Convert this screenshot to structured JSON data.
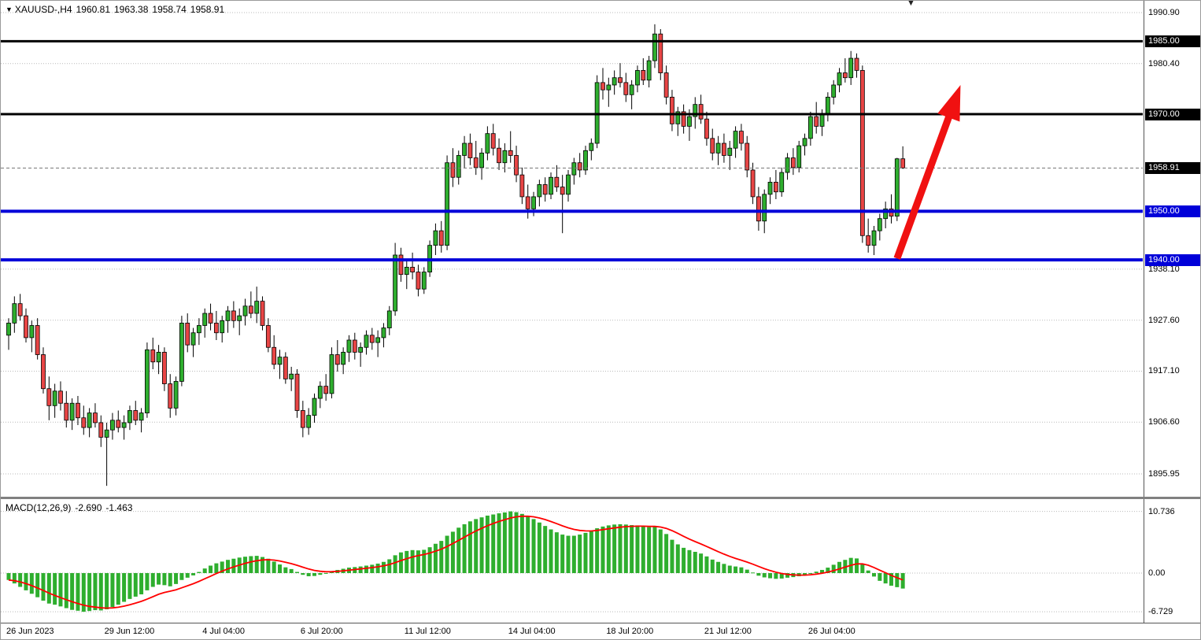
{
  "header": {
    "symbol_timeframe": "XAUUSD-,H4",
    "open": "1960.81",
    "high": "1963.38",
    "low": "1958.74",
    "close": "1958.91"
  },
  "chart_data": [
    {
      "type": "candlestick",
      "symbol": "XAUUSD",
      "timeframe": "H4",
      "price_axis": {
        "grid_labels": [
          1990.9,
          1980.4,
          1938.1,
          1927.6,
          1917.1,
          1906.6,
          1895.95
        ],
        "level_lines": [
          {
            "price": 1985.0,
            "color": "#000000",
            "width": 3
          },
          {
            "price": 1970.0,
            "color": "#000000",
            "width": 3
          },
          {
            "price": 1950.0,
            "color": "#0000d9",
            "width": 4
          },
          {
            "price": 1940.0,
            "color": "#0000d9",
            "width": 4
          }
        ],
        "current_price": 1958.91
      },
      "time_labels": [
        {
          "label": "26 Jun 2023",
          "bar": 0
        },
        {
          "label": "29 Jun 12:00",
          "bar": 17
        },
        {
          "label": "4 Jul 04:00",
          "bar": 34
        },
        {
          "label": "6 Jul 20:00",
          "bar": 51
        },
        {
          "label": "11 Jul 12:00",
          "bar": 69
        },
        {
          "label": "14 Jul 04:00",
          "bar": 87
        },
        {
          "label": "18 Jul 20:00",
          "bar": 104
        },
        {
          "label": "21 Jul 12:00",
          "bar": 121
        },
        {
          "label": "26 Jul 04:00",
          "bar": 139
        }
      ],
      "annotation_arrow": {
        "from_bar": 154,
        "from_price": 1940.3,
        "to_bar": 165,
        "to_price": 1976.0
      },
      "ohlc": [
        [
          1924.5,
          1928.0,
          1921.5,
          1927.0
        ],
        [
          1927.0,
          1932.5,
          1925.0,
          1931.0
        ],
        [
          1931.0,
          1933.0,
          1927.5,
          1928.5
        ],
        [
          1928.5,
          1930.0,
          1923.0,
          1924.0
        ],
        [
          1924.0,
          1927.5,
          1921.0,
          1926.5
        ],
        [
          1926.5,
          1928.0,
          1919.5,
          1920.5
        ],
        [
          1920.5,
          1922.0,
          1912.5,
          1913.5
        ],
        [
          1913.5,
          1916.0,
          1907.0,
          1910.0
        ],
        [
          1910.0,
          1914.5,
          1907.5,
          1913.0
        ],
        [
          1913.0,
          1915.0,
          1909.0,
          1910.5
        ],
        [
          1910.5,
          1913.0,
          1905.5,
          1907.0
        ],
        [
          1907.0,
          1911.5,
          1905.0,
          1910.5
        ],
        [
          1910.5,
          1912.0,
          1906.0,
          1907.5
        ],
        [
          1907.5,
          1910.0,
          1904.0,
          1905.5
        ],
        [
          1905.5,
          1909.5,
          1903.5,
          1908.5
        ],
        [
          1908.5,
          1910.5,
          1905.5,
          1906.5
        ],
        [
          1906.5,
          1908.0,
          1901.5,
          1903.5
        ],
        [
          1903.5,
          1906.5,
          1893.5,
          1905.0
        ],
        [
          1905.0,
          1908.5,
          1903.0,
          1907.0
        ],
        [
          1907.0,
          1909.0,
          1904.5,
          1905.5
        ],
        [
          1905.5,
          1908.0,
          1903.0,
          1906.5
        ],
        [
          1906.5,
          1910.0,
          1905.0,
          1909.0
        ],
        [
          1909.0,
          1911.0,
          1906.0,
          1907.0
        ],
        [
          1907.0,
          1909.5,
          1904.5,
          1908.5
        ],
        [
          1908.5,
          1923.0,
          1907.5,
          1921.5
        ],
        [
          1921.5,
          1924.0,
          1917.5,
          1919.0
        ],
        [
          1919.0,
          1922.5,
          1916.5,
          1921.0
        ],
        [
          1921.0,
          1922.0,
          1913.0,
          1914.5
        ],
        [
          1914.5,
          1916.5,
          1907.5,
          1909.5
        ],
        [
          1909.5,
          1916.0,
          1908.0,
          1915.0
        ],
        [
          1915.0,
          1928.5,
          1914.0,
          1927.0
        ],
        [
          1927.0,
          1929.0,
          1921.0,
          1922.5
        ],
        [
          1922.5,
          1926.0,
          1920.0,
          1925.0
        ],
        [
          1925.0,
          1928.0,
          1922.5,
          1926.5
        ],
        [
          1926.5,
          1930.0,
          1924.0,
          1929.0
        ],
        [
          1929.0,
          1931.0,
          1925.5,
          1927.0
        ],
        [
          1927.0,
          1929.5,
          1923.5,
          1925.0
        ],
        [
          1925.0,
          1928.5,
          1923.0,
          1927.5
        ],
        [
          1927.5,
          1930.5,
          1925.0,
          1929.5
        ],
        [
          1929.5,
          1931.5,
          1926.0,
          1927.5
        ],
        [
          1927.5,
          1930.0,
          1924.5,
          1928.5
        ],
        [
          1928.5,
          1932.0,
          1926.5,
          1930.5
        ],
        [
          1930.5,
          1933.5,
          1928.0,
          1929.0
        ],
        [
          1929.0,
          1934.5,
          1927.0,
          1931.5
        ],
        [
          1931.5,
          1932.5,
          1925.5,
          1926.5
        ],
        [
          1926.5,
          1928.0,
          1921.0,
          1922.0
        ],
        [
          1922.0,
          1924.5,
          1917.5,
          1918.5
        ],
        [
          1918.5,
          1921.5,
          1915.5,
          1920.0
        ],
        [
          1920.0,
          1921.0,
          1914.5,
          1915.5
        ],
        [
          1915.5,
          1918.0,
          1913.0,
          1916.5
        ],
        [
          1916.5,
          1917.5,
          1907.5,
          1909.0
        ],
        [
          1909.0,
          1911.0,
          1903.5,
          1905.5
        ],
        [
          1905.5,
          1909.5,
          1904.0,
          1908.0
        ],
        [
          1908.0,
          1912.5,
          1906.5,
          1911.5
        ],
        [
          1911.5,
          1915.0,
          1909.5,
          1914.0
        ],
        [
          1914.0,
          1916.5,
          1911.0,
          1912.5
        ],
        [
          1912.5,
          1922.0,
          1911.5,
          1920.5
        ],
        [
          1920.5,
          1923.5,
          1917.0,
          1918.5
        ],
        [
          1918.5,
          1922.0,
          1916.5,
          1921.0
        ],
        [
          1921.0,
          1924.5,
          1919.0,
          1923.5
        ],
        [
          1923.5,
          1925.0,
          1919.5,
          1921.0
        ],
        [
          1921.0,
          1923.0,
          1918.0,
          1922.0
        ],
        [
          1922.0,
          1925.5,
          1920.5,
          1924.5
        ],
        [
          1924.5,
          1926.0,
          1921.5,
          1923.0
        ],
        [
          1923.0,
          1925.5,
          1920.0,
          1924.0
        ],
        [
          1924.0,
          1927.0,
          1922.0,
          1926.0
        ],
        [
          1926.0,
          1930.5,
          1924.5,
          1929.5
        ],
        [
          1929.5,
          1943.5,
          1928.5,
          1941.0
        ],
        [
          1941.0,
          1942.5,
          1935.5,
          1937.0
        ],
        [
          1937.0,
          1940.0,
          1934.0,
          1938.5
        ],
        [
          1938.5,
          1941.5,
          1936.0,
          1937.5
        ],
        [
          1937.5,
          1939.0,
          1932.5,
          1934.0
        ],
        [
          1934.0,
          1938.5,
          1933.0,
          1937.5
        ],
        [
          1937.5,
          1944.0,
          1936.5,
          1943.0
        ],
        [
          1943.0,
          1947.5,
          1941.0,
          1946.0
        ],
        [
          1946.0,
          1948.0,
          1941.5,
          1943.0
        ],
        [
          1943.0,
          1961.5,
          1942.0,
          1960.0
        ],
        [
          1960.0,
          1963.0,
          1955.0,
          1957.0
        ],
        [
          1957.0,
          1962.5,
          1955.5,
          1961.5
        ],
        [
          1961.5,
          1965.5,
          1959.0,
          1964.0
        ],
        [
          1964.0,
          1966.0,
          1959.5,
          1961.0
        ],
        [
          1961.0,
          1964.5,
          1957.5,
          1959.0
        ],
        [
          1959.0,
          1963.0,
          1956.5,
          1962.0
        ],
        [
          1962.0,
          1967.5,
          1960.5,
          1966.0
        ],
        [
          1966.0,
          1968.0,
          1961.5,
          1963.0
        ],
        [
          1963.0,
          1965.0,
          1958.5,
          1960.0
        ],
        [
          1960.0,
          1964.0,
          1958.0,
          1962.5
        ],
        [
          1962.5,
          1966.5,
          1960.0,
          1961.5
        ],
        [
          1961.5,
          1963.5,
          1956.0,
          1957.5
        ],
        [
          1957.5,
          1959.0,
          1951.5,
          1953.0
        ],
        [
          1953.0,
          1955.5,
          1948.5,
          1950.5
        ],
        [
          1950.5,
          1954.0,
          1949.0,
          1953.0
        ],
        [
          1953.0,
          1956.5,
          1951.0,
          1955.5
        ],
        [
          1955.5,
          1957.0,
          1952.0,
          1953.5
        ],
        [
          1953.5,
          1958.0,
          1952.5,
          1957.0
        ],
        [
          1957.0,
          1959.5,
          1954.0,
          1955.0
        ],
        [
          1955.0,
          1957.5,
          1945.5,
          1953.5
        ],
        [
          1953.5,
          1958.5,
          1952.0,
          1957.5
        ],
        [
          1957.5,
          1961.0,
          1955.5,
          1960.0
        ],
        [
          1960.0,
          1962.0,
          1957.0,
          1958.5
        ],
        [
          1958.5,
          1963.5,
          1957.5,
          1962.5
        ],
        [
          1962.5,
          1965.0,
          1960.5,
          1964.0
        ],
        [
          1964.0,
          1978.0,
          1963.0,
          1976.5
        ],
        [
          1976.5,
          1979.5,
          1973.0,
          1975.0
        ],
        [
          1975.0,
          1977.5,
          1971.5,
          1976.0
        ],
        [
          1976.0,
          1979.0,
          1974.0,
          1977.5
        ],
        [
          1977.5,
          1980.5,
          1975.5,
          1976.5
        ],
        [
          1976.5,
          1978.5,
          1972.5,
          1974.0
        ],
        [
          1974.0,
          1977.0,
          1971.0,
          1976.0
        ],
        [
          1976.0,
          1980.0,
          1974.5,
          1979.0
        ],
        [
          1979.0,
          1981.5,
          1976.0,
          1977.0
        ],
        [
          1977.0,
          1982.0,
          1975.5,
          1981.0
        ],
        [
          1981.0,
          1988.5,
          1979.5,
          1986.5
        ],
        [
          1986.5,
          1987.5,
          1977.0,
          1978.5
        ],
        [
          1978.5,
          1980.0,
          1972.0,
          1973.5
        ],
        [
          1973.5,
          1975.0,
          1966.5,
          1968.0
        ],
        [
          1968.0,
          1971.5,
          1965.5,
          1970.5
        ],
        [
          1970.5,
          1972.0,
          1966.0,
          1967.5
        ],
        [
          1967.5,
          1971.0,
          1964.5,
          1969.5
        ],
        [
          1969.5,
          1973.5,
          1967.0,
          1972.0
        ],
        [
          1972.0,
          1974.0,
          1968.0,
          1969.0
        ],
        [
          1969.0,
          1970.5,
          1963.5,
          1965.0
        ],
        [
          1965.0,
          1967.0,
          1960.5,
          1962.0
        ],
        [
          1962.0,
          1965.5,
          1959.5,
          1964.0
        ],
        [
          1964.0,
          1966.0,
          1960.0,
          1961.5
        ],
        [
          1961.5,
          1964.5,
          1958.5,
          1963.0
        ],
        [
          1963.0,
          1967.5,
          1961.0,
          1966.5
        ],
        [
          1966.5,
          1968.0,
          1962.5,
          1964.0
        ],
        [
          1964.0,
          1965.5,
          1957.0,
          1958.5
        ],
        [
          1958.5,
          1960.0,
          1951.5,
          1953.0
        ],
        [
          1953.0,
          1955.0,
          1946.0,
          1948.0
        ],
        [
          1948.0,
          1954.5,
          1945.5,
          1953.5
        ],
        [
          1953.5,
          1957.0,
          1951.5,
          1956.0
        ],
        [
          1956.0,
          1958.5,
          1952.5,
          1954.0
        ],
        [
          1954.0,
          1959.0,
          1953.0,
          1958.0
        ],
        [
          1958.0,
          1962.0,
          1956.5,
          1961.0
        ],
        [
          1961.0,
          1963.0,
          1957.5,
          1959.0
        ],
        [
          1959.0,
          1964.5,
          1958.0,
          1963.5
        ],
        [
          1963.5,
          1966.0,
          1961.5,
          1965.0
        ],
        [
          1965.0,
          1970.5,
          1963.5,
          1969.5
        ],
        [
          1969.5,
          1972.5,
          1966.0,
          1967.5
        ],
        [
          1967.5,
          1971.0,
          1965.5,
          1970.0
        ],
        [
          1970.0,
          1974.5,
          1968.5,
          1973.5
        ],
        [
          1973.5,
          1977.0,
          1972.0,
          1976.0
        ],
        [
          1976.0,
          1979.5,
          1974.5,
          1978.5
        ],
        [
          1978.5,
          1981.5,
          1976.5,
          1977.5
        ],
        [
          1977.5,
          1983.0,
          1976.0,
          1981.5
        ],
        [
          1981.5,
          1982.5,
          1977.5,
          1979.0
        ],
        [
          1979.0,
          1980.0,
          1943.5,
          1945.0
        ],
        [
          1945.0,
          1948.5,
          1941.5,
          1943.0
        ],
        [
          1943.0,
          1947.0,
          1941.0,
          1946.0
        ],
        [
          1946.0,
          1949.5,
          1944.0,
          1948.5
        ],
        [
          1948.5,
          1952.0,
          1946.5,
          1950.5
        ],
        [
          1950.5,
          1953.5,
          1947.5,
          1949.0
        ],
        [
          1949.0,
          1961.0,
          1948.0,
          1960.81
        ],
        [
          1960.81,
          1963.38,
          1958.74,
          1958.91
        ]
      ]
    },
    {
      "type": "macd-histogram",
      "label": "MACD(12,26,9)",
      "macd_value": "-2.690",
      "signal_value": "-1.463",
      "axis_labels": [
        "10.736",
        "0.00",
        "-6.729"
      ],
      "values": [
        -1.2,
        -1.8,
        -2.4,
        -3.0,
        -3.6,
        -4.2,
        -4.8,
        -5.3,
        -5.5,
        -5.8,
        -6.1,
        -6.4,
        -6.55,
        -6.729,
        -6.6,
        -6.45,
        -6.5,
        -6.3,
        -5.9,
        -5.5,
        -5.0,
        -4.5,
        -4.1,
        -3.7,
        -3.0,
        -2.4,
        -2.0,
        -2.1,
        -2.3,
        -1.9,
        -1.2,
        -0.8,
        -0.4,
        0.2,
        0.8,
        1.3,
        1.7,
        2.0,
        2.3,
        2.5,
        2.7,
        2.85,
        2.95,
        3.0,
        2.8,
        2.5,
        2.0,
        1.5,
        1.0,
        0.7,
        0.2,
        -0.3,
        -0.55,
        -0.5,
        -0.3,
        -0.1,
        0.3,
        0.55,
        0.75,
        0.95,
        1.05,
        1.15,
        1.3,
        1.45,
        1.65,
        1.95,
        2.4,
        3.1,
        3.6,
        3.85,
        4.0,
        3.95,
        4.05,
        4.5,
        5.1,
        5.6,
        6.5,
        7.2,
        7.9,
        8.5,
        9.0,
        9.4,
        9.7,
        10.0,
        10.2,
        10.4,
        10.55,
        10.736,
        10.6,
        10.3,
        9.9,
        9.4,
        8.8,
        8.2,
        7.6,
        7.1,
        6.7,
        6.5,
        6.5,
        6.7,
        7.0,
        7.3,
        7.8,
        8.1,
        8.3,
        8.45,
        8.5,
        8.45,
        8.35,
        8.3,
        8.15,
        8.0,
        8.1,
        7.6,
        6.8,
        5.8,
        5.0,
        4.4,
        4.0,
        3.7,
        3.4,
        2.9,
        2.35,
        1.95,
        1.6,
        1.3,
        1.15,
        1.0,
        0.6,
        0.1,
        -0.45,
        -0.75,
        -0.9,
        -1.0,
        -0.95,
        -0.8,
        -0.7,
        -0.55,
        -0.35,
        0.0,
        0.25,
        0.55,
        0.95,
        1.45,
        1.95,
        2.3,
        2.65,
        2.55,
        1.6,
        0.45,
        -0.6,
        -1.35,
        -1.8,
        -2.2,
        -2.45,
        -2.69
      ]
    }
  ],
  "icons": {
    "dropdown": "▼",
    "shift_marker": "▼"
  },
  "colors": {
    "bull": "#2eae2e",
    "bear": "#e84545",
    "wick": "#000000",
    "grid": "#b9b9b9",
    "arrow": "#f01111",
    "macd_bar": "#2eae2e",
    "signal_line": "#ff0000",
    "current_price_line": "#777777",
    "current_price_badge": "#000000"
  }
}
